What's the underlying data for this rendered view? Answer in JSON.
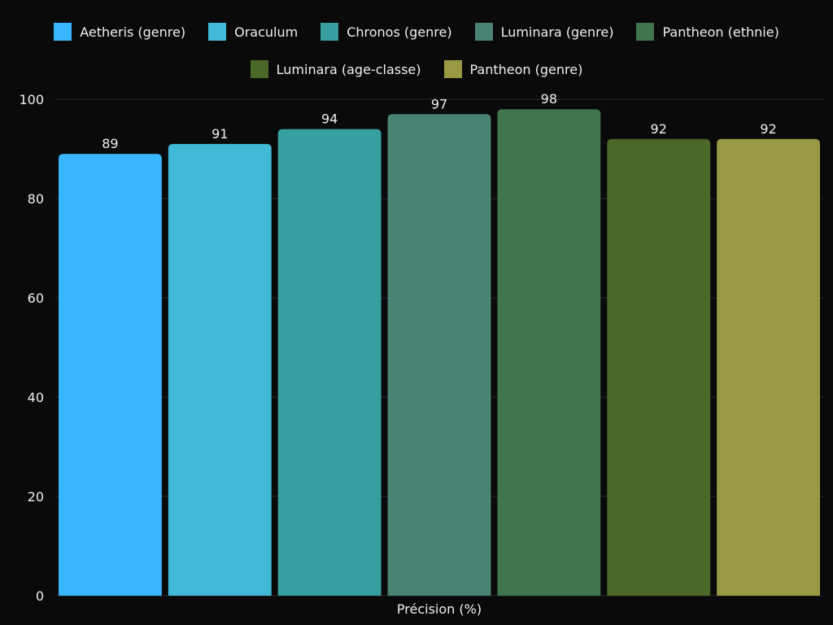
{
  "chart_data": {
    "type": "bar",
    "title": "",
    "xlabel": "Précision (%)",
    "ylabel": "",
    "ylim": [
      0,
      100
    ],
    "yticks": [
      0,
      20,
      40,
      60,
      80,
      100
    ],
    "grid": true,
    "legend_position": "top",
    "series": [
      {
        "name": "Aetheris (genre)",
        "value": 89,
        "color": "#38b6ff"
      },
      {
        "name": "Oraculum",
        "value": 91,
        "color": "#41b8d5"
      },
      {
        "name": "Chronos (genre)",
        "value": 94,
        "color": "#389fa0"
      },
      {
        "name": "Luminara (genre)",
        "value": 97,
        "color": "#488373"
      },
      {
        "name": "Pantheon (ethnie)",
        "value": 98,
        "color": "#40744c"
      },
      {
        "name": "Luminara (age-classe)",
        "value": 92,
        "color": "#4a6828"
      },
      {
        "name": "Pantheon (genre)",
        "value": 92,
        "color": "#999944"
      }
    ]
  }
}
